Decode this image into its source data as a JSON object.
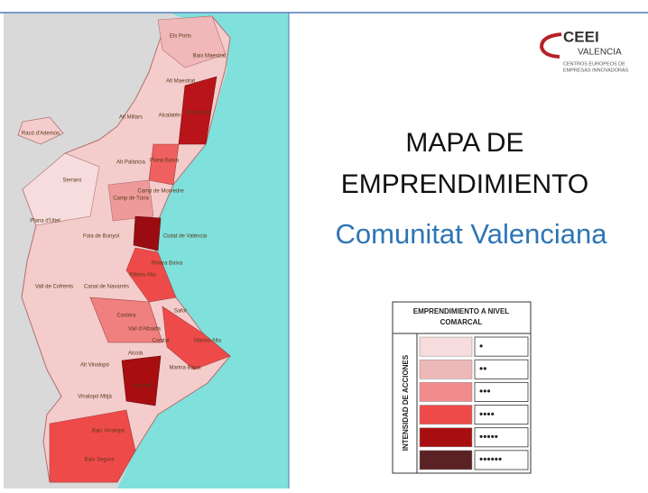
{
  "logo": {
    "name": "CEEI",
    "city": "VALENCIA",
    "line1": "CENTROS EUROPEOS DE",
    "line2": "EMPRESAS INNOVADORAS"
  },
  "title": {
    "line1": "MAPA DE",
    "line2": "EMPRENDIMIENTO",
    "subtitle": "Comunitat Valenciana"
  },
  "map": {
    "labels": [
      "Els Ports",
      "Baix Maestrat",
      "Alt Maestrat",
      "Plana Alta",
      "Alcalatén",
      "Alt Millars",
      "Alt Palància",
      "Plana Baixa",
      "Racó d'Ademús",
      "Serrans",
      "Camp de Túria",
      "Camp de Morvedre",
      "Plana d'Utiel",
      "Foia de Bunyol",
      "Ciutat de València",
      "Vall de Cofrents",
      "Canal de Navarrés",
      "Ribera Alta",
      "Ribera Baixa",
      "Costera",
      "Safor",
      "Vall d'Albaida",
      "Marina Alta",
      "Comtat",
      "Alcoià",
      "Alt Vinalopó",
      "Marina Baixa",
      "Vinalopó Mitjà",
      "Alacantí",
      "Baix Vinalopó",
      "Baix Segura"
    ]
  },
  "legend": {
    "title_line1": "EMPRENDIMIENTO A NIVEL",
    "title_line2": "COMARCAL",
    "axis": "INTENSIDAD DE ACCIONES",
    "levels": [
      {
        "color": "#f6dcdc",
        "label": "•"
      },
      {
        "color": "#eeb8b8",
        "label": "••"
      },
      {
        "color": "#f28c8c",
        "label": "•••"
      },
      {
        "color": "#ef4a4a",
        "label": "••••"
      },
      {
        "color": "#a80e10",
        "label": "•••••"
      },
      {
        "color": "#5a2224",
        "label": "••••••"
      }
    ]
  }
}
